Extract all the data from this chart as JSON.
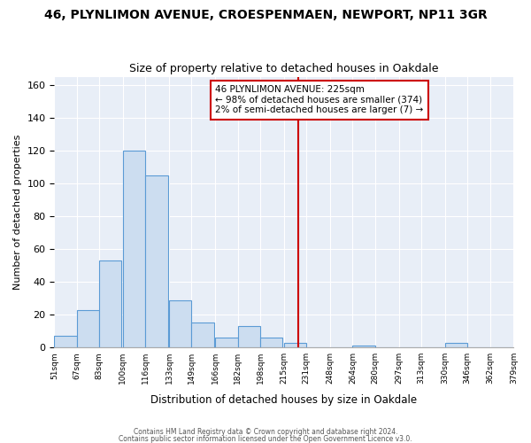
{
  "title": "46, PLYNLIMON AVENUE, CROESPENMAEN, NEWPORT, NP11 3GR",
  "subtitle": "Size of property relative to detached houses in Oakdale",
  "xlabel": "Distribution of detached houses by size in Oakdale",
  "ylabel": "Number of detached properties",
  "bar_values": [
    7,
    23,
    53,
    120,
    105,
    29,
    15,
    6,
    13,
    6,
    3,
    0,
    0,
    1,
    0,
    0,
    0,
    3,
    0,
    0
  ],
  "bin_labels": [
    "51sqm",
    "67sqm",
    "83sqm",
    "100sqm",
    "116sqm",
    "133sqm",
    "149sqm",
    "166sqm",
    "182sqm",
    "198sqm",
    "215sqm",
    "231sqm",
    "248sqm",
    "264sqm",
    "280sqm",
    "297sqm",
    "313sqm",
    "330sqm",
    "346sqm",
    "362sqm",
    "379sqm"
  ],
  "bin_edges": [
    51,
    67,
    83,
    100,
    116,
    133,
    149,
    166,
    182,
    198,
    215,
    231,
    248,
    264,
    280,
    297,
    313,
    330,
    346,
    362,
    379
  ],
  "bar_color": "#ccddf0",
  "bar_edgecolor": "#5b9bd5",
  "vline_x": 225,
  "vline_color": "#cc0000",
  "annotation_title": "46 PLYNLIMON AVENUE: 225sqm",
  "annotation_line1": "← 98% of detached houses are smaller (374)",
  "annotation_line2": "2% of semi-detached houses are larger (7) →",
  "annotation_box_edgecolor": "#cc0000",
  "ylim": [
    0,
    165
  ],
  "yticks": [
    0,
    20,
    40,
    60,
    80,
    100,
    120,
    140,
    160
  ],
  "footer1": "Contains HM Land Registry data © Crown copyright and database right 2024.",
  "footer2": "Contains public sector information licensed under the Open Government Licence v3.0.",
  "bg_color": "#ffffff",
  "plot_bg_color": "#e8eef7",
  "grid_color": "#ffffff",
  "title_fontsize": 10,
  "subtitle_fontsize": 9
}
